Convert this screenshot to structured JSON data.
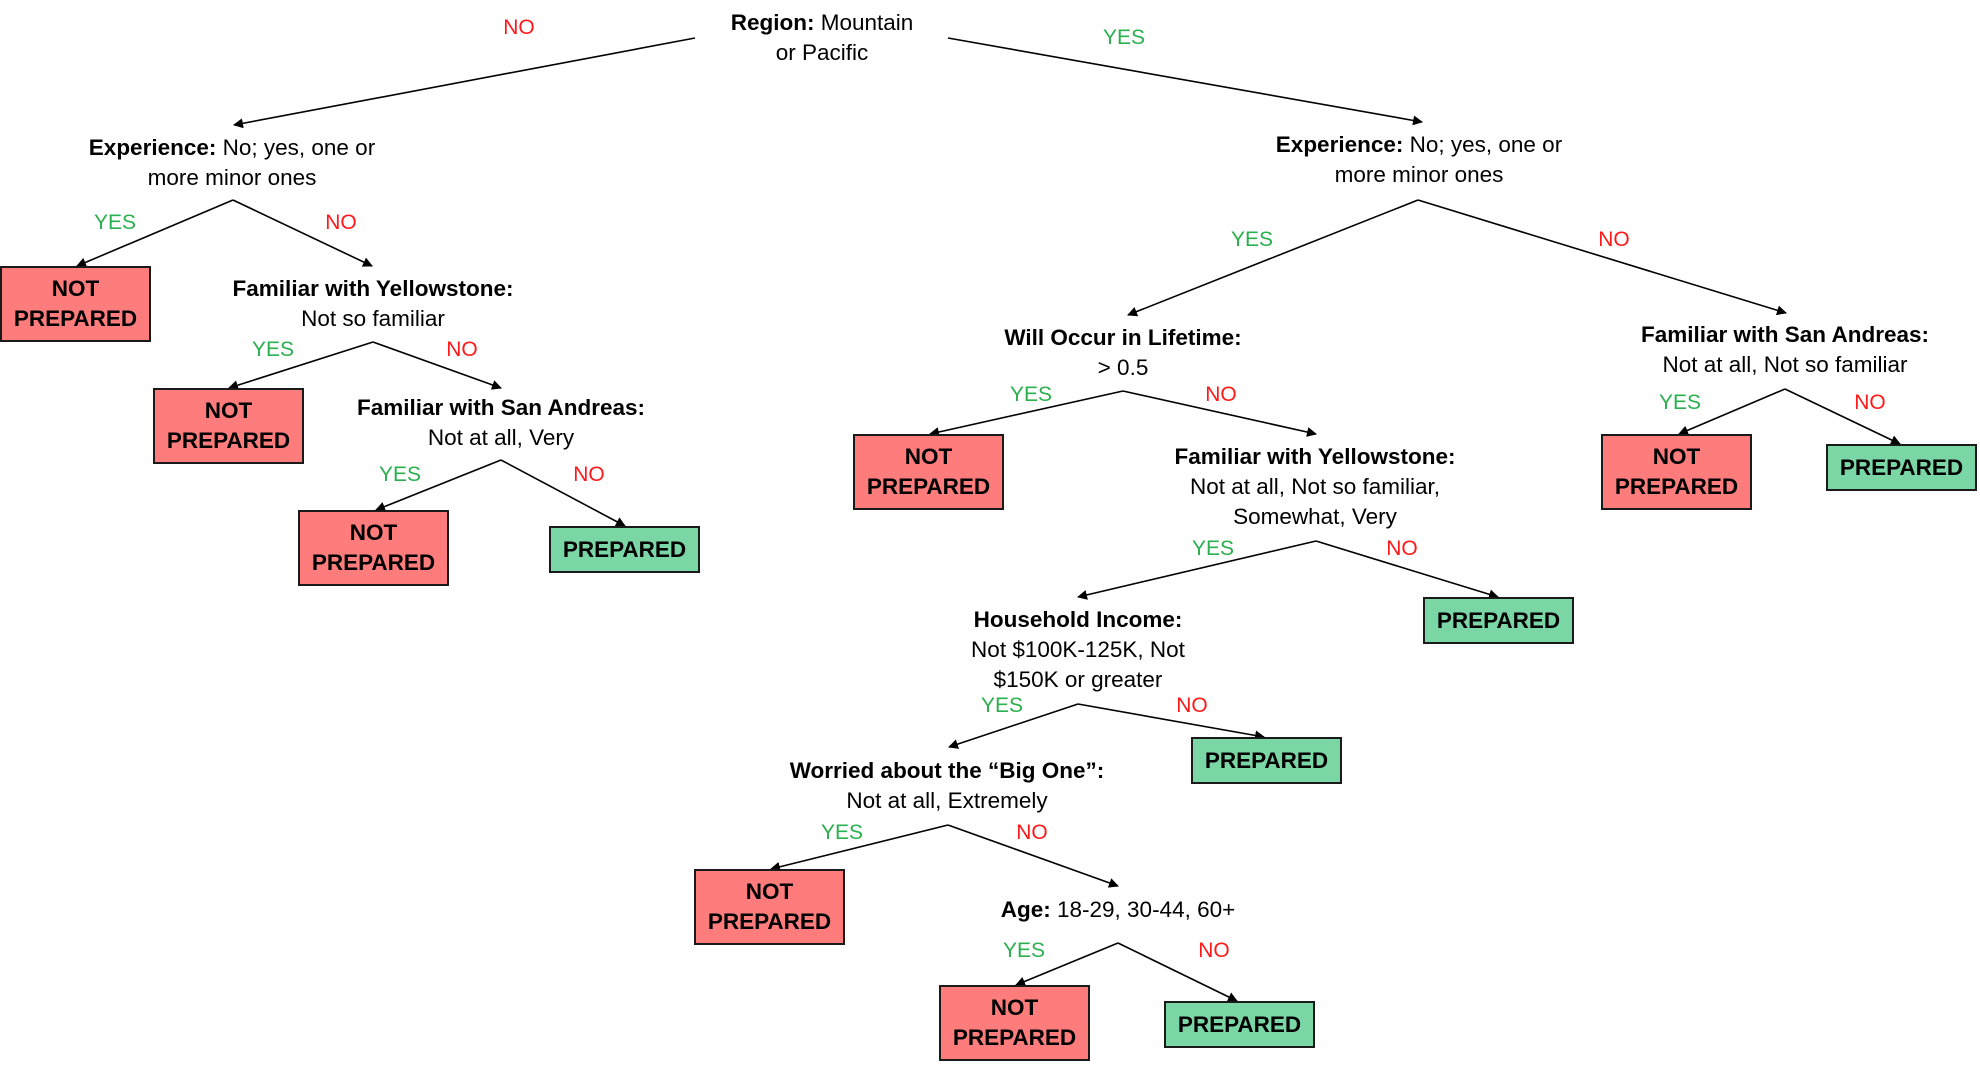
{
  "branch_labels": {
    "yes": "YES",
    "no": "NO"
  },
  "leaf_labels": {
    "not_prepared_1": "NOT",
    "not_prepared_2": "PREPARED",
    "prepared": "PREPARED"
  },
  "colors": {
    "not_prepared": "#ff7c7c",
    "prepared": "#7ad6a4",
    "yes_label": "#2ab04f",
    "no_label": "#ff1a1a"
  },
  "nodes": {
    "root": {
      "bold": "Region:",
      "text": " Mountain",
      "line2": "or Pacific"
    },
    "left_exp": {
      "bold": "Experience:",
      "text": " No; yes, one or",
      "line2": "more minor ones"
    },
    "left_yellowstone": {
      "bold": "Familiar with Yellowstone:",
      "line2": "Not so familiar"
    },
    "left_sanandreas": {
      "bold": "Familiar with San Andreas:",
      "line2": "Not at  all, Very"
    },
    "right_exp": {
      "bold": "Experience:",
      "text": " No; yes, one or",
      "line2": "more minor ones"
    },
    "lifetime": {
      "bold": "Will Occur in Lifetime:",
      "line2": "> 0.5"
    },
    "right_sanandreas": {
      "bold": "Familiar with San Andreas:",
      "line2": "Not at  all, Not so familiar"
    },
    "right_yellowstone": {
      "bold": "Familiar with Yellowstone:",
      "line2": "Not at all, Not so familiar,",
      "line3": "Somewhat, Very"
    },
    "income": {
      "bold": "Household Income:",
      "line2": "Not $100K-125K, Not",
      "line3": "$150K or greater"
    },
    "bigone": {
      "bold": "Worried about the “Big One”:",
      "line2": "Not at all, Extremely"
    },
    "age": {
      "bold": "Age:",
      "text": " 18-29, 30-44, 60+"
    }
  }
}
